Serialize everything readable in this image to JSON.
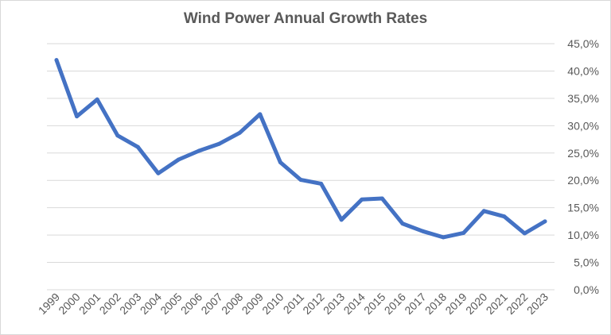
{
  "chart_data": {
    "type": "line",
    "title": "Wind Power Annual Growth Rates",
    "xlabel": "",
    "ylabel": "",
    "categories": [
      "1999",
      "2000",
      "2001",
      "2002",
      "2003",
      "2004",
      "2005",
      "2006",
      "2007",
      "2008",
      "2009",
      "2010",
      "2011",
      "2012",
      "2013",
      "2014",
      "2015",
      "2016",
      "2017",
      "2018",
      "2019",
      "2020",
      "2021",
      "2022",
      "2023"
    ],
    "series": [
      {
        "values": [
          42.0,
          31.7,
          34.8,
          28.2,
          26.1,
          21.3,
          23.8,
          25.4,
          26.7,
          28.7,
          32.1,
          23.3,
          20.1,
          19.4,
          12.8,
          16.5,
          16.7,
          12.1,
          10.7,
          9.6,
          10.4,
          14.4,
          13.4,
          10.3,
          12.5
        ],
        "color": "#4472c4"
      }
    ],
    "ylim": [
      0,
      45
    ],
    "yticks": [
      "0,0%",
      "5,0%",
      "10,0%",
      "15,0%",
      "20,0%",
      "25,0%",
      "30,0%",
      "35,0%",
      "40,0%",
      "45,0%"
    ],
    "y_axis_position": "right",
    "grid": true,
    "gridline_color": "#d9d9d9",
    "legend": "none"
  }
}
